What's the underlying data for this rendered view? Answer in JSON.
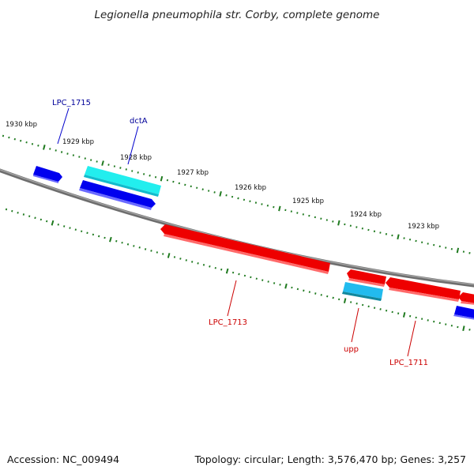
{
  "title": "Legionella pneumophila str. Corby, complete genome",
  "footer": {
    "accession": "Accession: NC_009494",
    "summary": "Topology: circular; Length: 3,576,470 bp; Genes: 3,257"
  },
  "colors": {
    "backbone": "#7a7a7a",
    "ticks": "#1f7a1f",
    "forward_gene": "#0000ee",
    "reverse_gene": "#ee0000",
    "rna_gene": "#22ddee",
    "rna_gene_rev": "#22bbee"
  },
  "scale_labels": [
    "1930 kbp",
    "1929 kbp",
    "1928 kbp",
    "1927 kbp",
    "1926 kbp",
    "1925 kbp",
    "1924 kbp",
    "1923 kbp"
  ],
  "genes": [
    {
      "label": "LPC_1715",
      "strand": "+",
      "color": "#0000ee"
    },
    {
      "label": "dctA",
      "strand": "+",
      "color": "#0000ee"
    },
    {
      "label": "LPC_1713",
      "strand": "-",
      "color": "#ee0000"
    },
    {
      "label": "upp",
      "strand": "-",
      "color": "#ee0000"
    },
    {
      "label": "LPC_1711",
      "strand": "-",
      "color": "#ee0000"
    }
  ]
}
